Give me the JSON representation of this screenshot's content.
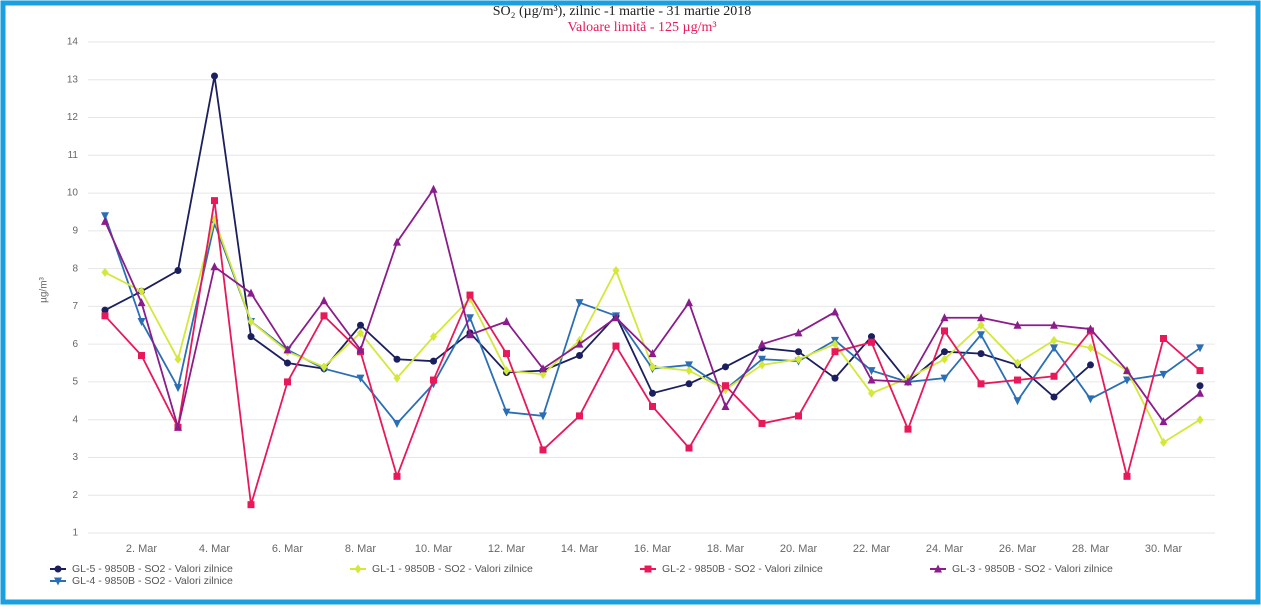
{
  "chart_data": {
    "type": "line",
    "title": "SO₂ (µg/m³), zilnic -1 martie  - 31 martie 2018",
    "subtitle": "Valoare limită - 125 µg/m³",
    "y_label": "µg/m³",
    "categories": [
      null,
      "2. Mar",
      null,
      "4. Mar",
      null,
      "6. Mar",
      null,
      "8. Mar",
      null,
      "10. Mar",
      null,
      "12. Mar",
      null,
      "14. Mar",
      null,
      "16. Mar",
      null,
      "18. Mar",
      null,
      "20. Mar",
      null,
      "22. Mar",
      null,
      "24. Mar",
      null,
      "26. Mar",
      null,
      "28. Mar",
      null,
      "30. Mar",
      null
    ],
    "ylim": [
      1,
      14
    ],
    "yticks": [
      1,
      2,
      3,
      4,
      5,
      6,
      7,
      8,
      9,
      10,
      11,
      12,
      13,
      14
    ],
    "grid": true,
    "legend": "bottom",
    "series": [
      {
        "name": "GL-5 - 9850B - SO2 - Valori zilnice",
        "color": "#1b1f5e",
        "marker": "circle",
        "values": [
          6.9,
          7.4,
          7.95,
          13.1,
          6.2,
          5.5,
          5.35,
          6.5,
          5.6,
          5.55,
          6.3,
          5.25,
          5.3,
          5.7,
          6.75,
          4.7,
          4.95,
          5.4,
          5.9,
          5.8,
          5.1,
          6.2,
          5.0,
          5.8,
          5.75,
          5.45,
          4.6,
          5.45,
          null,
          null,
          4.9
        ]
      },
      {
        "name": "GL-4 - 9850B - SO2 - Valori zilnice",
        "color": "#2a6fb5",
        "marker": "triangle-down",
        "values": [
          9.4,
          6.6,
          4.85,
          9.2,
          6.6,
          5.85,
          5.35,
          5.1,
          3.9,
          4.95,
          6.7,
          4.2,
          4.1,
          7.1,
          6.75,
          5.35,
          5.45,
          4.8,
          5.6,
          5.55,
          6.1,
          5.3,
          5.0,
          5.1,
          6.25,
          4.5,
          5.9,
          4.55,
          5.05,
          5.2,
          5.9
        ]
      },
      {
        "name": "GL-1 - 9850B - SO2 - Valori zilnice",
        "color": "#d4e83a",
        "marker": "diamond",
        "values": [
          7.9,
          7.4,
          5.6,
          9.3,
          6.6,
          5.8,
          5.4,
          6.3,
          5.1,
          6.2,
          7.2,
          5.3,
          5.2,
          6.1,
          7.95,
          5.4,
          5.3,
          4.8,
          5.45,
          5.6,
          6.0,
          4.7,
          5.1,
          5.6,
          6.5,
          5.5,
          6.1,
          5.9,
          5.3,
          3.4,
          4.0
        ]
      },
      {
        "name": "GL-2 - 9850B - SO2 - Valori zilnice",
        "color": "#e8185a",
        "marker": "square",
        "values": [
          6.75,
          5.7,
          3.8,
          9.8,
          1.75,
          5.0,
          6.75,
          5.8,
          2.5,
          5.05,
          7.3,
          5.75,
          3.2,
          4.1,
          5.95,
          4.35,
          3.25,
          4.9,
          3.9,
          4.1,
          5.8,
          6.05,
          3.75,
          6.35,
          4.95,
          5.05,
          5.15,
          6.35,
          2.5,
          6.15,
          5.3
        ]
      },
      {
        "name": "GL-3 - 9850B - SO2 - Valori zilnice",
        "color": "#8b1c8b",
        "marker": "triangle-up",
        "values": [
          9.25,
          7.1,
          3.8,
          8.05,
          7.35,
          5.85,
          7.15,
          5.85,
          8.7,
          10.1,
          6.25,
          6.6,
          5.35,
          6.0,
          6.7,
          5.75,
          7.1,
          4.35,
          6.0,
          6.3,
          6.85,
          5.05,
          5.0,
          6.7,
          6.7,
          6.5,
          6.5,
          6.4,
          5.3,
          3.95,
          4.7
        ]
      }
    ]
  }
}
